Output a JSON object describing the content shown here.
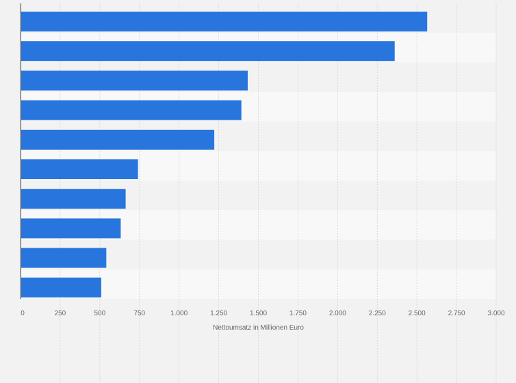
{
  "chart_data": {
    "type": "bar",
    "orientation": "horizontal",
    "categories": [
      "",
      "",
      "",
      "",
      "",
      "",
      "",
      "",
      "",
      ""
    ],
    "values": [
      2565,
      2360,
      1433,
      1393,
      1222,
      741,
      663,
      632,
      541,
      509
    ],
    "xlabel": "Nettoumsatz in Millionen Euro",
    "ylabel": "",
    "xlim": [
      0,
      3000
    ],
    "x_ticks": [
      0,
      250,
      500,
      750,
      1000,
      1250,
      1500,
      1750,
      2000,
      2250,
      2500,
      2750,
      3000
    ],
    "x_tick_labels": [
      "0",
      "250",
      "500",
      "750",
      "1.000",
      "1.250",
      "1.500",
      "1.750",
      "2.000",
      "2.250",
      "2.500",
      "2.750",
      "3.000"
    ],
    "grid": true,
    "legend": "none",
    "colors": {
      "bar": "#2876dd",
      "band_dark": "#f2f2f2",
      "band_light": "#f8f8f8",
      "grid": "#d8d8d8",
      "axis": "#333333",
      "text": "#666666"
    }
  }
}
